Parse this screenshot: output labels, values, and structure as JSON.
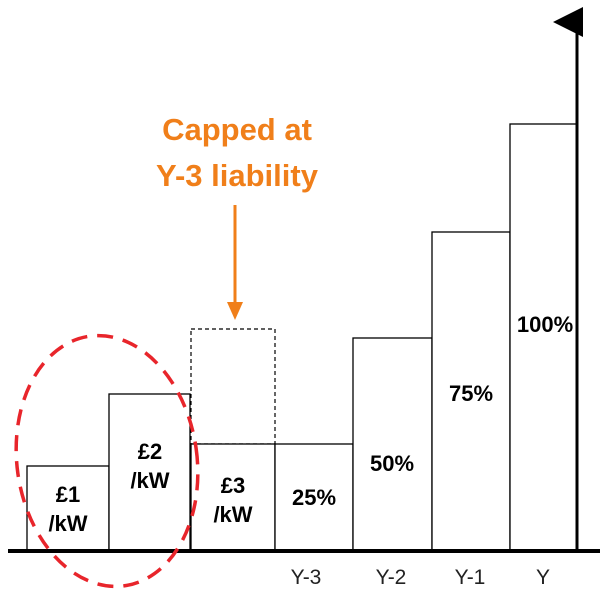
{
  "diagram": {
    "annotation": {
      "line1": "Capped at",
      "line2": "Y-3 liability",
      "color": "#f07f1a"
    },
    "bars": [
      {
        "line1": "£1",
        "line2": "/kW"
      },
      {
        "line1": "£2",
        "line2": "/kW"
      },
      {
        "line1": "£3",
        "line2": "/kW"
      },
      {
        "line1": "25%"
      },
      {
        "line1": "50%"
      },
      {
        "line1": "75%"
      },
      {
        "line1": "100%"
      }
    ],
    "x_ticks": [
      "Y-3",
      "Y-2",
      "Y-1",
      "Y"
    ],
    "highlight_color": "#e8252b"
  }
}
